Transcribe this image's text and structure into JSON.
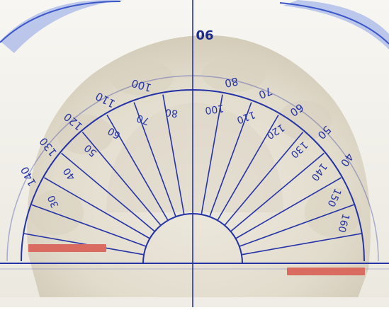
{
  "photo": {
    "subject": "protractor overlay on dental arch cast",
    "colors": {
      "background": "#f5f4ef",
      "cast": "#e6e1d3",
      "cast_shadow": "#cfc8b6",
      "ink": "#2433a6",
      "rim": "#3b57c8",
      "marker": "#d96b61"
    }
  },
  "protractor": {
    "center_label": "90",
    "outer_labels_left": [
      "140",
      "130",
      "120",
      "110",
      "100"
    ],
    "outer_labels_right": [
      "80",
      "70",
      "60",
      "50",
      "40"
    ],
    "inner_labels_left": [
      "30",
      "40",
      "50",
      "60",
      "70",
      "80"
    ],
    "inner_labels_right": [
      "100",
      "110",
      "120",
      "130",
      "140",
      "150",
      "160"
    ]
  },
  "markers": {
    "left": {
      "label": "left-marker"
    },
    "right": {
      "label": "right-marker"
    }
  }
}
